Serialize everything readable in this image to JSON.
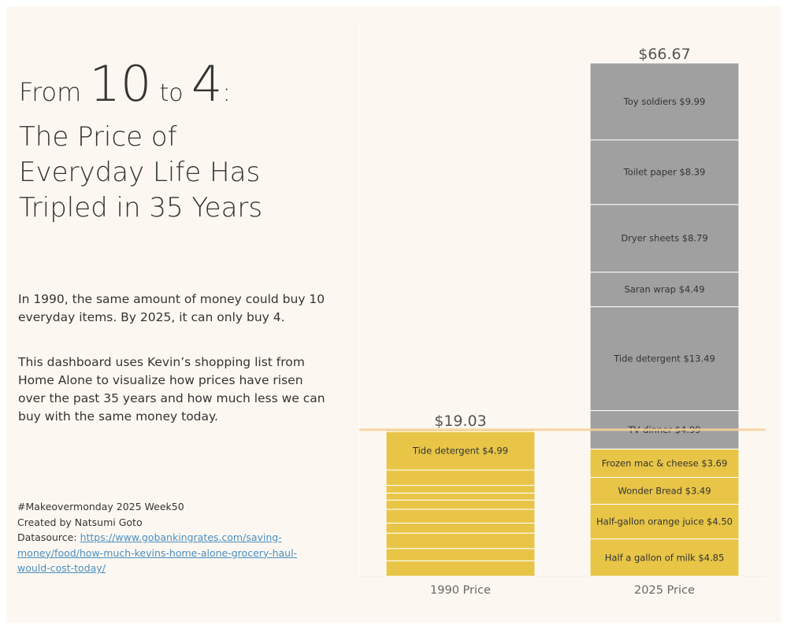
{
  "headline": {
    "from": "From",
    "num_from": "10",
    "to": "to",
    "num_to": "4",
    "colon": ":",
    "subtitle_lines": [
      "The Price of",
      "Everyday Life Has",
      "Tripled in 35 Years"
    ]
  },
  "description": {
    "p1": "In 1990, the same amount of money could buy 10 everyday items. By 2025, it can only buy 4.",
    "p2": "This dashboard uses Kevin’s shopping list from Home Alone to visualize how prices have risen over the past 35 years and how much less we can buy with the same money today."
  },
  "credits": {
    "tag": "#Makeovermonday 2025 Week50",
    "author": "Created by Natsumi Goto",
    "source_label": "Datasource:",
    "source_url": "https://www.gobankingrates.com/saving-money/food/how-much-kevins-home-alone-grocery-haul-would-cost-today/"
  },
  "colors": {
    "affordable": "#e8c547",
    "beyond": "#a0a0a0",
    "reference_line": "#f5cf9b",
    "segment_border": "#ffffff",
    "background": "#fcf8f1"
  },
  "chart_data": {
    "type": "bar",
    "stacked": true,
    "categories": [
      "1990 Price",
      "2025 Price"
    ],
    "ylim": [
      0,
      66.67
    ],
    "reference_line": 19.03,
    "totals": [
      "$19.03",
      "$66.67"
    ],
    "series": [
      {
        "name": "1990 Price",
        "items": [
          {
            "label": "",
            "price": 2.0
          },
          {
            "label": "",
            "price": 1.6
          },
          {
            "label": "",
            "price": 2.0
          },
          {
            "label": "",
            "price": 1.3
          },
          {
            "label": "",
            "price": 1.8
          },
          {
            "label": "",
            "price": 1.2
          },
          {
            "label": "",
            "price": 0.9
          },
          {
            "label": "",
            "price": 1.0
          },
          {
            "label": "",
            "price": 2.0
          },
          {
            "label": "Tide detergent",
            "price": 4.99,
            "display": "$4.99"
          },
          {
            "label": "",
            "price": 0.24
          }
        ]
      },
      {
        "name": "2025 Price",
        "items": [
          {
            "label": "Half a gallon of milk",
            "price": 4.85,
            "display": "$4.85",
            "affordable": true
          },
          {
            "label": "Half-gallon orange juice",
            "price": 4.5,
            "display": "$4.50",
            "affordable": true
          },
          {
            "label": "Wonder Bread",
            "price": 3.49,
            "display": "$3.49",
            "affordable": true
          },
          {
            "label": "Frozen mac & cheese",
            "price": 3.69,
            "display": "$3.69",
            "affordable": true
          },
          {
            "label": "TV dinner",
            "price": 4.99,
            "display": "$4.99",
            "affordable": false
          },
          {
            "label": "Tide detergent",
            "price": 13.49,
            "display": "$13.49",
            "affordable": false
          },
          {
            "label": "Saran wrap",
            "price": 4.49,
            "display": "$4.49",
            "affordable": false
          },
          {
            "label": "Dryer sheets",
            "price": 8.79,
            "display": "$8.79",
            "affordable": false
          },
          {
            "label": "Toilet paper",
            "price": 8.39,
            "display": "$8.39",
            "affordable": false
          },
          {
            "label": "Toy soldiers",
            "price": 9.99,
            "display": "$9.99",
            "affordable": false
          }
        ]
      }
    ]
  }
}
